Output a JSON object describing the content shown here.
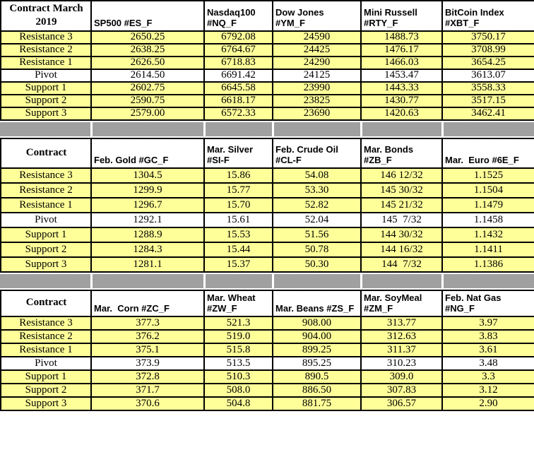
{
  "colors": {
    "row_fill": "#FFFF99",
    "pivot_row_fill": "#FFFFFF",
    "grid_border": "#000000",
    "separator_gray_light": "#C0C0C0",
    "separator_gray_dark": "#808080"
  },
  "row_labels": [
    "Resistance 3",
    "Resistance 2",
    "Resistance 1",
    "Pivot",
    "Support 1",
    "Support 2",
    "Support 3"
  ],
  "tables": [
    {
      "corner_label": "Contract March\n2019",
      "columns": [
        {
          "label": "SP500 #ES_F",
          "values": [
            "2650.25",
            "2638.25",
            "2626.50",
            "2614.50",
            "2602.75",
            "2590.75",
            "2579.00"
          ]
        },
        {
          "label": "Nasdaq100\n#NQ_F",
          "values": [
            "6792.08",
            "6764.67",
            "6718.83",
            "6691.42",
            "6645.58",
            "6618.17",
            "6572.33"
          ]
        },
        {
          "label": "Dow Jones\n#YM_F",
          "values": [
            "24590",
            "24425",
            "24290",
            "24125",
            "23990",
            "23825",
            "23690"
          ]
        },
        {
          "label": "Mini Russell\n#RTY_F",
          "values": [
            "1488.73",
            "1476.17",
            "1466.03",
            "1453.47",
            "1443.33",
            "1430.77",
            "1420.63"
          ]
        },
        {
          "label": "BitCoin Index\n#XBT_F",
          "values": [
            "3750.17",
            "3708.99",
            "3654.25",
            "3613.07",
            "3558.33",
            "3517.15",
            "3462.41"
          ]
        }
      ]
    },
    {
      "corner_label": "Contract",
      "columns": [
        {
          "label": "Feb. Gold #GC_F",
          "values": [
            "1304.5",
            "1299.9",
            "1296.7",
            "1292.1",
            "1288.9",
            "1284.3",
            "1281.1"
          ]
        },
        {
          "label": "Mar. Silver\n#SI-F",
          "values": [
            "15.86",
            "15.77",
            "15.70",
            "15.61",
            "15.53",
            "15.44",
            "15.37"
          ]
        },
        {
          "label": "Feb. Crude Oil\n#CL-F",
          "values": [
            "54.08",
            "53.30",
            "52.82",
            "52.04",
            "51.56",
            "50.78",
            "50.30"
          ]
        },
        {
          "label": "Mar. Bonds  #ZB_F",
          "values": [
            "146 12/32",
            "145 30/32",
            "145 21/32",
            "145  7/32",
            "144 30/32",
            "144 16/32",
            "144  7/32"
          ]
        },
        {
          "label": "Mar.  Euro #6E_F",
          "values": [
            "1.1525",
            "1.1504",
            "1.1479",
            "1.1458",
            "1.1432",
            "1.1411",
            "1.1386"
          ]
        }
      ]
    },
    {
      "corner_label": "Contract",
      "columns": [
        {
          "label": "Mar.  Corn #ZC_F",
          "values": [
            "377.3",
            "376.2",
            "375.1",
            "373.9",
            "372.8",
            "371.7",
            "370.6"
          ]
        },
        {
          "label": "Mar. Wheat\n#ZW_F",
          "values": [
            "521.3",
            "519.0",
            "515.8",
            "513.5",
            "510.3",
            "508.0",
            "504.8"
          ]
        },
        {
          "label": "Mar. Beans #ZS_F",
          "values": [
            "908.00",
            "904.00",
            "899.25",
            "895.25",
            "890.5",
            "886.50",
            "881.75"
          ]
        },
        {
          "label": "Mar. SoyMeal\n#ZM_F",
          "values": [
            "313.77",
            "312.63",
            "311.37",
            "310.23",
            "309.0",
            "307.83",
            "306.57"
          ]
        },
        {
          "label": "Feb. Nat Gas\n#NG_F",
          "values": [
            "3.97",
            "3.83",
            "3.61",
            "3.48",
            "3.3",
            "3.12",
            "2.90"
          ]
        }
      ]
    }
  ]
}
